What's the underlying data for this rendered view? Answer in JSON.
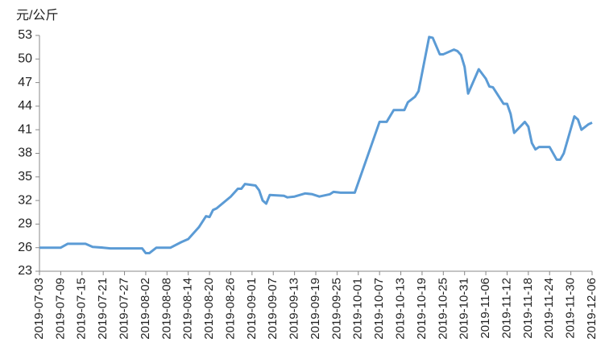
{
  "chart_data": {
    "type": "line",
    "y_label": "元/公斤",
    "x": [
      "2019-07-03",
      "2019-07-09",
      "2019-07-11",
      "2019-07-16",
      "2019-07-18",
      "2019-07-21",
      "2019-07-23",
      "2019-08-01",
      "2019-08-02",
      "2019-08-03",
      "2019-08-05",
      "2019-08-09",
      "2019-08-12",
      "2019-08-14",
      "2019-08-17",
      "2019-08-19",
      "2019-08-20",
      "2019-08-21",
      "2019-08-22",
      "2019-08-26",
      "2019-08-28",
      "2019-08-29",
      "2019-08-30",
      "2019-09-02",
      "2019-09-03",
      "2019-09-04",
      "2019-09-05",
      "2019-09-06",
      "2019-09-10",
      "2019-09-11",
      "2019-09-13",
      "2019-09-16",
      "2019-09-18",
      "2019-09-20",
      "2019-09-23",
      "2019-09-24",
      "2019-09-26",
      "2019-09-30",
      "2019-10-07",
      "2019-10-09",
      "2019-10-11",
      "2019-10-14",
      "2019-10-15",
      "2019-10-17",
      "2019-10-18",
      "2019-10-21",
      "2019-10-22",
      "2019-10-24",
      "2019-10-25",
      "2019-10-28",
      "2019-10-29",
      "2019-10-30",
      "2019-10-31",
      "2019-11-01",
      "2019-11-04",
      "2019-11-06",
      "2019-11-07",
      "2019-11-08",
      "2019-11-11",
      "2019-11-12",
      "2019-11-13",
      "2019-11-14",
      "2019-11-17",
      "2019-11-18",
      "2019-11-19",
      "2019-11-20",
      "2019-11-21",
      "2019-11-24",
      "2019-11-26",
      "2019-11-27",
      "2019-11-28",
      "2019-12-01",
      "2019-12-02",
      "2019-12-03",
      "2019-12-05",
      "2019-12-06"
    ],
    "values": [
      26.0,
      26.0,
      26.5,
      26.5,
      26.1,
      26.0,
      25.9,
      25.9,
      25.3,
      25.3,
      26.0,
      26.0,
      26.7,
      27.1,
      28.6,
      30.0,
      29.9,
      30.8,
      31.0,
      32.5,
      33.5,
      33.5,
      34.1,
      33.9,
      33.3,
      32.0,
      31.6,
      32.7,
      32.6,
      32.4,
      32.5,
      32.9,
      32.8,
      32.5,
      32.8,
      33.1,
      33.0,
      33.0,
      42.0,
      42.0,
      43.5,
      43.5,
      44.5,
      45.2,
      45.9,
      52.8,
      52.7,
      50.6,
      50.6,
      51.2,
      51.0,
      50.5,
      49.0,
      45.6,
      48.7,
      47.5,
      46.5,
      46.4,
      44.3,
      44.3,
      43.0,
      40.6,
      42.0,
      41.4,
      39.3,
      38.5,
      38.8,
      38.8,
      37.2,
      37.2,
      38.0,
      42.7,
      42.3,
      41.0,
      41.7,
      41.9
    ],
    "color": "#5b9bd5",
    "xlim": [
      "2019-07-03",
      "2019-12-06"
    ],
    "xticks": [
      "2019-07-03",
      "2019-07-09",
      "2019-07-15",
      "2019-07-21",
      "2019-07-27",
      "2019-08-02",
      "2019-08-08",
      "2019-08-14",
      "2019-08-20",
      "2019-08-26",
      "2019-09-01",
      "2019-09-07",
      "2019-09-13",
      "2019-09-19",
      "2019-09-25",
      "2019-10-01",
      "2019-10-07",
      "2019-10-13",
      "2019-10-19",
      "2019-10-25",
      "2019-10-31",
      "2019-11-06",
      "2019-11-12",
      "2019-11-18",
      "2019-11-24",
      "2019-11-30",
      "2019-12-06"
    ],
    "ylim": [
      23,
      53
    ],
    "yticks": [
      23,
      26,
      29,
      32,
      35,
      38,
      41,
      44,
      47,
      50,
      53
    ],
    "grid": false
  }
}
